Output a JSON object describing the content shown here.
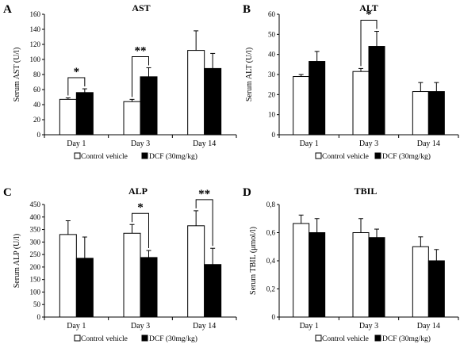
{
  "colors": {
    "control": "#ffffff",
    "dcf": "#000000",
    "stroke": "#000000"
  },
  "chart_data": [
    {
      "type": "bar",
      "letter": "A",
      "title": "AST",
      "ylabel": "Serum AST (U/l)",
      "ylim": [
        0,
        160
      ],
      "ytick_labels": [
        "0",
        "20",
        "40",
        "60",
        "80",
        "100",
        "120",
        "140",
        "160"
      ],
      "categories": [
        "Day 1",
        "Day 3",
        "Day 14"
      ],
      "series": [
        {
          "name": "Control vehicle",
          "values": [
            47,
            44,
            112
          ],
          "errors": [
            2,
            3,
            26
          ]
        },
        {
          "name": "DCF (30mg/kg)",
          "values": [
            56,
            77,
            88
          ],
          "errors": [
            5,
            12,
            20
          ]
        }
      ],
      "significance": [
        {
          "category": "Day 1",
          "label": "*"
        },
        {
          "category": "Day 3",
          "label": "**"
        }
      ],
      "legend": [
        "Control vehicle",
        "DCF (30mg/kg)"
      ]
    },
    {
      "type": "bar",
      "letter": "B",
      "title": "ALT",
      "ylabel": "Serum ALT (U/l)",
      "ylim": [
        0,
        60
      ],
      "ytick_labels": [
        "0",
        "10",
        "20",
        "30",
        "40",
        "50",
        "60"
      ],
      "categories": [
        "Day 1",
        "Day 3",
        "Day 14"
      ],
      "series": [
        {
          "name": "Control vehicle",
          "values": [
            29,
            31.5,
            21.5
          ],
          "errors": [
            1,
            1.5,
            4.5
          ]
        },
        {
          "name": "DCF (30mg/kg)",
          "values": [
            36.5,
            44,
            21.5
          ],
          "errors": [
            5,
            7.5,
            4.5
          ]
        }
      ],
      "significance": [
        {
          "category": "Day 3",
          "label": "*"
        }
      ],
      "legend": [
        "Control vehicle",
        "DCF (30mg/kg)"
      ]
    },
    {
      "type": "bar",
      "letter": "C",
      "title": "ALP",
      "ylabel": "Serum ALP (U/l)",
      "ylim": [
        0,
        450
      ],
      "ytick_labels": [
        "0",
        "50",
        "100",
        "150",
        "200",
        "250",
        "300",
        "350",
        "400",
        "450"
      ],
      "categories": [
        "Day 1",
        "Day 3",
        "Day 14"
      ],
      "series": [
        {
          "name": "Control vehicle",
          "values": [
            330,
            335,
            365
          ],
          "errors": [
            55,
            35,
            60
          ]
        },
        {
          "name": "DCF (30mg/kg)",
          "values": [
            235,
            238,
            210
          ],
          "errors": [
            85,
            28,
            65
          ]
        }
      ],
      "significance": [
        {
          "category": "Day 3",
          "label": "*"
        },
        {
          "category": "Day 14",
          "label": "**"
        }
      ],
      "legend": [
        "Control vehicle",
        "DCF (30mg/kg)"
      ]
    },
    {
      "type": "bar",
      "letter": "D",
      "title": "TBIL",
      "ylabel": "Serum TBIL (μmol/l)",
      "ylim": [
        0,
        0.8
      ],
      "ytick_labels": [
        "0",
        "0,2",
        "0,4",
        "0,6",
        "0,8"
      ],
      "categories": [
        "Day 1",
        "Day 3",
        "Day 14"
      ],
      "series": [
        {
          "name": "Control vehicle",
          "values": [
            0.665,
            0.6,
            0.5
          ],
          "errors": [
            0.06,
            0.1,
            0.07
          ]
        },
        {
          "name": "DCF (30mg/kg)",
          "values": [
            0.6,
            0.565,
            0.4
          ],
          "errors": [
            0.1,
            0.06,
            0.08
          ]
        }
      ],
      "significance": [],
      "legend": [
        "Control vehicle",
        "DCF (30mg/kg)"
      ]
    }
  ]
}
